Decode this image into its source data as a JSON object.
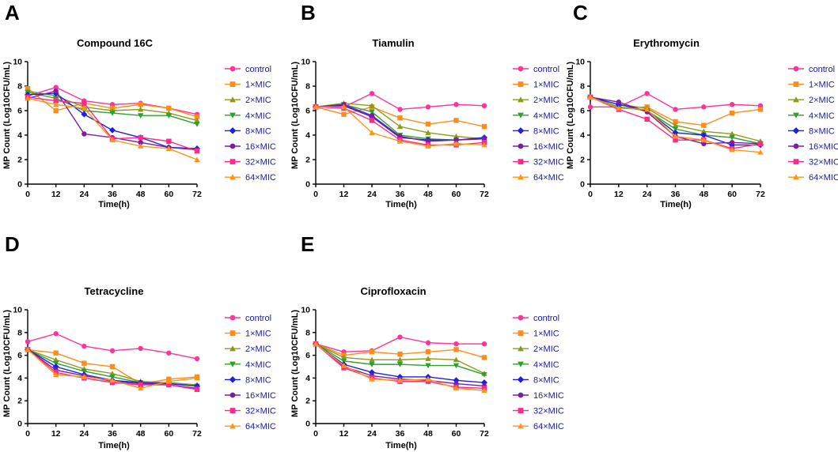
{
  "figure": {
    "series_names": [
      "control",
      "1×MIC",
      "2×MIC",
      "4×MIC",
      "8×MIC",
      "16×MIC",
      "32×MIC",
      "64×MIC"
    ],
    "series_colors": [
      "#ff3399",
      "#ff8c1a",
      "#8c9a1c",
      "#2da02d",
      "#1f1fe0",
      "#7b1fa2",
      "#ff2a8a",
      "#ff9419"
    ],
    "series_markers": [
      "circle",
      "square",
      "triangle-up",
      "triangle-down",
      "diamond",
      "circle",
      "square",
      "triangle-up"
    ]
  },
  "chart_data": [
    {
      "panel": "A",
      "type": "line",
      "title": "Compound 16C",
      "xlabel": "Time(h)",
      "ylabel": "MP Count (Log10CFU/mL)",
      "x": [
        0,
        12,
        24,
        36,
        48,
        60,
        72
      ],
      "xticks": [
        0,
        12,
        24,
        36,
        48,
        60,
        72
      ],
      "xlim": [
        0,
        72
      ],
      "ylim": [
        0,
        10
      ],
      "yticks": [
        0,
        2,
        4,
        6,
        8,
        10
      ],
      "series": [
        {
          "name": "control",
          "values": [
            7.2,
            7.9,
            6.8,
            6.5,
            6.6,
            6.2,
            5.7
          ]
        },
        {
          "name": "1×MIC",
          "values": [
            7.8,
            6.0,
            6.6,
            6.2,
            6.5,
            6.2,
            5.5
          ]
        },
        {
          "name": "2×MIC",
          "values": [
            7.6,
            7.2,
            6.3,
            6.0,
            6.1,
            5.8,
            5.2
          ]
        },
        {
          "name": "4×MIC",
          "values": [
            7.5,
            7.0,
            6.0,
            5.8,
            5.6,
            5.6,
            4.9
          ]
        },
        {
          "name": "8×MIC",
          "values": [
            7.3,
            7.4,
            5.7,
            4.4,
            3.8,
            3.0,
            2.9
          ]
        },
        {
          "name": "16×MIC",
          "values": [
            7.0,
            7.6,
            4.1,
            3.8,
            3.4,
            3.0,
            2.8
          ]
        },
        {
          "name": "32×MIC",
          "values": [
            7.1,
            6.8,
            6.6,
            3.7,
            3.8,
            3.5,
            2.7
          ]
        },
        {
          "name": "64×MIC",
          "values": [
            7.0,
            6.5,
            6.2,
            3.6,
            3.1,
            2.9,
            2.0
          ]
        }
      ]
    },
    {
      "panel": "B",
      "type": "line",
      "title": "Tiamulin",
      "xlabel": "Time(h)",
      "ylabel": "MP Count (Log10CFU/mL)",
      "x": [
        0,
        12,
        24,
        36,
        48,
        60,
        72
      ],
      "xticks": [
        0,
        12,
        24,
        36,
        48,
        60,
        72
      ],
      "xlim": [
        0,
        72
      ],
      "ylim": [
        0,
        10
      ],
      "yticks": [
        0,
        2,
        4,
        6,
        8,
        10
      ],
      "series": [
        {
          "name": "control",
          "values": [
            6.3,
            6.3,
            7.4,
            6.1,
            6.3,
            6.5,
            6.4
          ]
        },
        {
          "name": "1×MIC",
          "values": [
            6.3,
            5.7,
            6.3,
            5.4,
            4.9,
            5.2,
            4.7
          ]
        },
        {
          "name": "2×MIC",
          "values": [
            6.3,
            6.6,
            6.4,
            4.7,
            4.2,
            3.9,
            3.7
          ]
        },
        {
          "name": "4×MIC",
          "values": [
            6.3,
            6.5,
            5.9,
            4.0,
            3.7,
            3.6,
            3.7
          ]
        },
        {
          "name": "8×MIC",
          "values": [
            6.3,
            6.4,
            5.5,
            3.8,
            3.6,
            3.6,
            3.8
          ]
        },
        {
          "name": "16×MIC",
          "values": [
            6.3,
            6.5,
            5.6,
            3.9,
            3.5,
            3.6,
            3.7
          ]
        },
        {
          "name": "32×MIC",
          "values": [
            6.3,
            6.2,
            5.2,
            3.6,
            3.2,
            3.2,
            3.4
          ]
        },
        {
          "name": "64×MIC",
          "values": [
            6.3,
            6.3,
            4.2,
            3.5,
            3.1,
            3.3,
            3.2
          ]
        }
      ]
    },
    {
      "panel": "C",
      "type": "line",
      "title": "Erythromycin",
      "xlabel": "Time(h)",
      "ylabel": "MP Count (Log10CFU/mL)",
      "x": [
        0,
        12,
        24,
        36,
        48,
        60,
        72
      ],
      "xticks": [
        0,
        12,
        24,
        36,
        48,
        60,
        72
      ],
      "xlim": [
        0,
        72
      ],
      "ylim": [
        0,
        10
      ],
      "yticks": [
        0,
        2,
        4,
        6,
        8,
        10
      ],
      "series": [
        {
          "name": "control",
          "values": [
            6.3,
            6.3,
            7.4,
            6.1,
            6.3,
            6.5,
            6.4
          ]
        },
        {
          "name": "1×MIC",
          "values": [
            7.1,
            6.2,
            6.3,
            5.1,
            4.8,
            5.8,
            6.1
          ]
        },
        {
          "name": "2×MIC",
          "values": [
            7.1,
            6.5,
            6.2,
            4.8,
            4.3,
            4.1,
            3.5
          ]
        },
        {
          "name": "4×MIC",
          "values": [
            7.1,
            6.3,
            6.0,
            4.5,
            4.0,
            3.8,
            3.3
          ]
        },
        {
          "name": "8×MIC",
          "values": [
            7.1,
            6.5,
            6.0,
            4.2,
            4.0,
            3.2,
            3.2
          ]
        },
        {
          "name": "16×MIC",
          "values": [
            7.1,
            6.7,
            5.9,
            3.9,
            3.3,
            3.4,
            3.3
          ]
        },
        {
          "name": "32×MIC",
          "values": [
            7.1,
            6.1,
            5.3,
            3.6,
            3.6,
            2.9,
            3.3
          ]
        },
        {
          "name": "64×MIC",
          "values": [
            7.1,
            6.2,
            6.1,
            3.9,
            3.6,
            2.8,
            2.6
          ]
        }
      ]
    },
    {
      "panel": "D",
      "type": "line",
      "title": "Tetracycline",
      "xlabel": "Time(h)",
      "ylabel": "MP Count (Log10CFU/mL)",
      "x": [
        0,
        12,
        24,
        36,
        48,
        60,
        72
      ],
      "xticks": [
        0,
        12,
        24,
        36,
        48,
        60,
        72
      ],
      "xlim": [
        0,
        72
      ],
      "ylim": [
        0,
        10
      ],
      "yticks": [
        0,
        2,
        4,
        6,
        8,
        10
      ],
      "series": [
        {
          "name": "control",
          "values": [
            7.2,
            7.9,
            6.8,
            6.4,
            6.6,
            6.2,
            5.7
          ]
        },
        {
          "name": "1×MIC",
          "values": [
            6.5,
            6.2,
            5.3,
            5.0,
            3.5,
            3.9,
            4.1
          ]
        },
        {
          "name": "2×MIC",
          "values": [
            6.5,
            5.6,
            4.8,
            4.4,
            3.7,
            3.6,
            3.4
          ]
        },
        {
          "name": "4×MIC",
          "values": [
            6.5,
            5.3,
            4.6,
            4.1,
            3.6,
            3.5,
            3.3
          ]
        },
        {
          "name": "8×MIC",
          "values": [
            6.5,
            5.0,
            4.3,
            3.8,
            3.6,
            3.5,
            3.3
          ]
        },
        {
          "name": "16×MIC",
          "values": [
            6.5,
            4.7,
            4.2,
            3.7,
            3.5,
            3.4,
            3.1
          ]
        },
        {
          "name": "32×MIC",
          "values": [
            6.5,
            4.5,
            4.0,
            3.6,
            3.4,
            3.4,
            3.0
          ]
        },
        {
          "name": "64×MIC",
          "values": [
            6.5,
            4.3,
            4.1,
            3.8,
            3.1,
            3.7,
            4.0
          ]
        }
      ]
    },
    {
      "panel": "E",
      "type": "line",
      "title": "Ciprofloxacin",
      "xlabel": "Time(h)",
      "ylabel": "MP Count (Log10CFU/mL)",
      "x": [
        0,
        12,
        24,
        36,
        48,
        60,
        72
      ],
      "xticks": [
        0,
        12,
        24,
        36,
        48,
        60,
        72
      ],
      "xlim": [
        0,
        72
      ],
      "ylim": [
        0,
        10
      ],
      "yticks": [
        0,
        2,
        4,
        6,
        8,
        10
      ],
      "series": [
        {
          "name": "control",
          "values": [
            7.0,
            6.3,
            6.4,
            7.6,
            7.1,
            7.0,
            7.0
          ]
        },
        {
          "name": "1×MIC",
          "values": [
            7.0,
            6.0,
            6.3,
            6.1,
            6.3,
            6.5,
            5.8
          ]
        },
        {
          "name": "2×MIC",
          "values": [
            7.0,
            5.8,
            5.6,
            5.6,
            5.7,
            5.6,
            4.4
          ]
        },
        {
          "name": "4×MIC",
          "values": [
            7.0,
            5.5,
            5.2,
            5.2,
            5.1,
            5.1,
            4.3
          ]
        },
        {
          "name": "8×MIC",
          "values": [
            7.0,
            5.2,
            4.5,
            4.1,
            4.1,
            3.8,
            3.6
          ]
        },
        {
          "name": "16×MIC",
          "values": [
            7.0,
            5.0,
            4.2,
            3.9,
            3.8,
            3.5,
            3.3
          ]
        },
        {
          "name": "32×MIC",
          "values": [
            7.0,
            4.9,
            4.0,
            3.7,
            3.7,
            3.2,
            3.1
          ]
        },
        {
          "name": "64×MIC",
          "values": [
            7.0,
            5.1,
            3.9,
            3.8,
            3.9,
            3.1,
            2.9
          ]
        }
      ]
    }
  ]
}
